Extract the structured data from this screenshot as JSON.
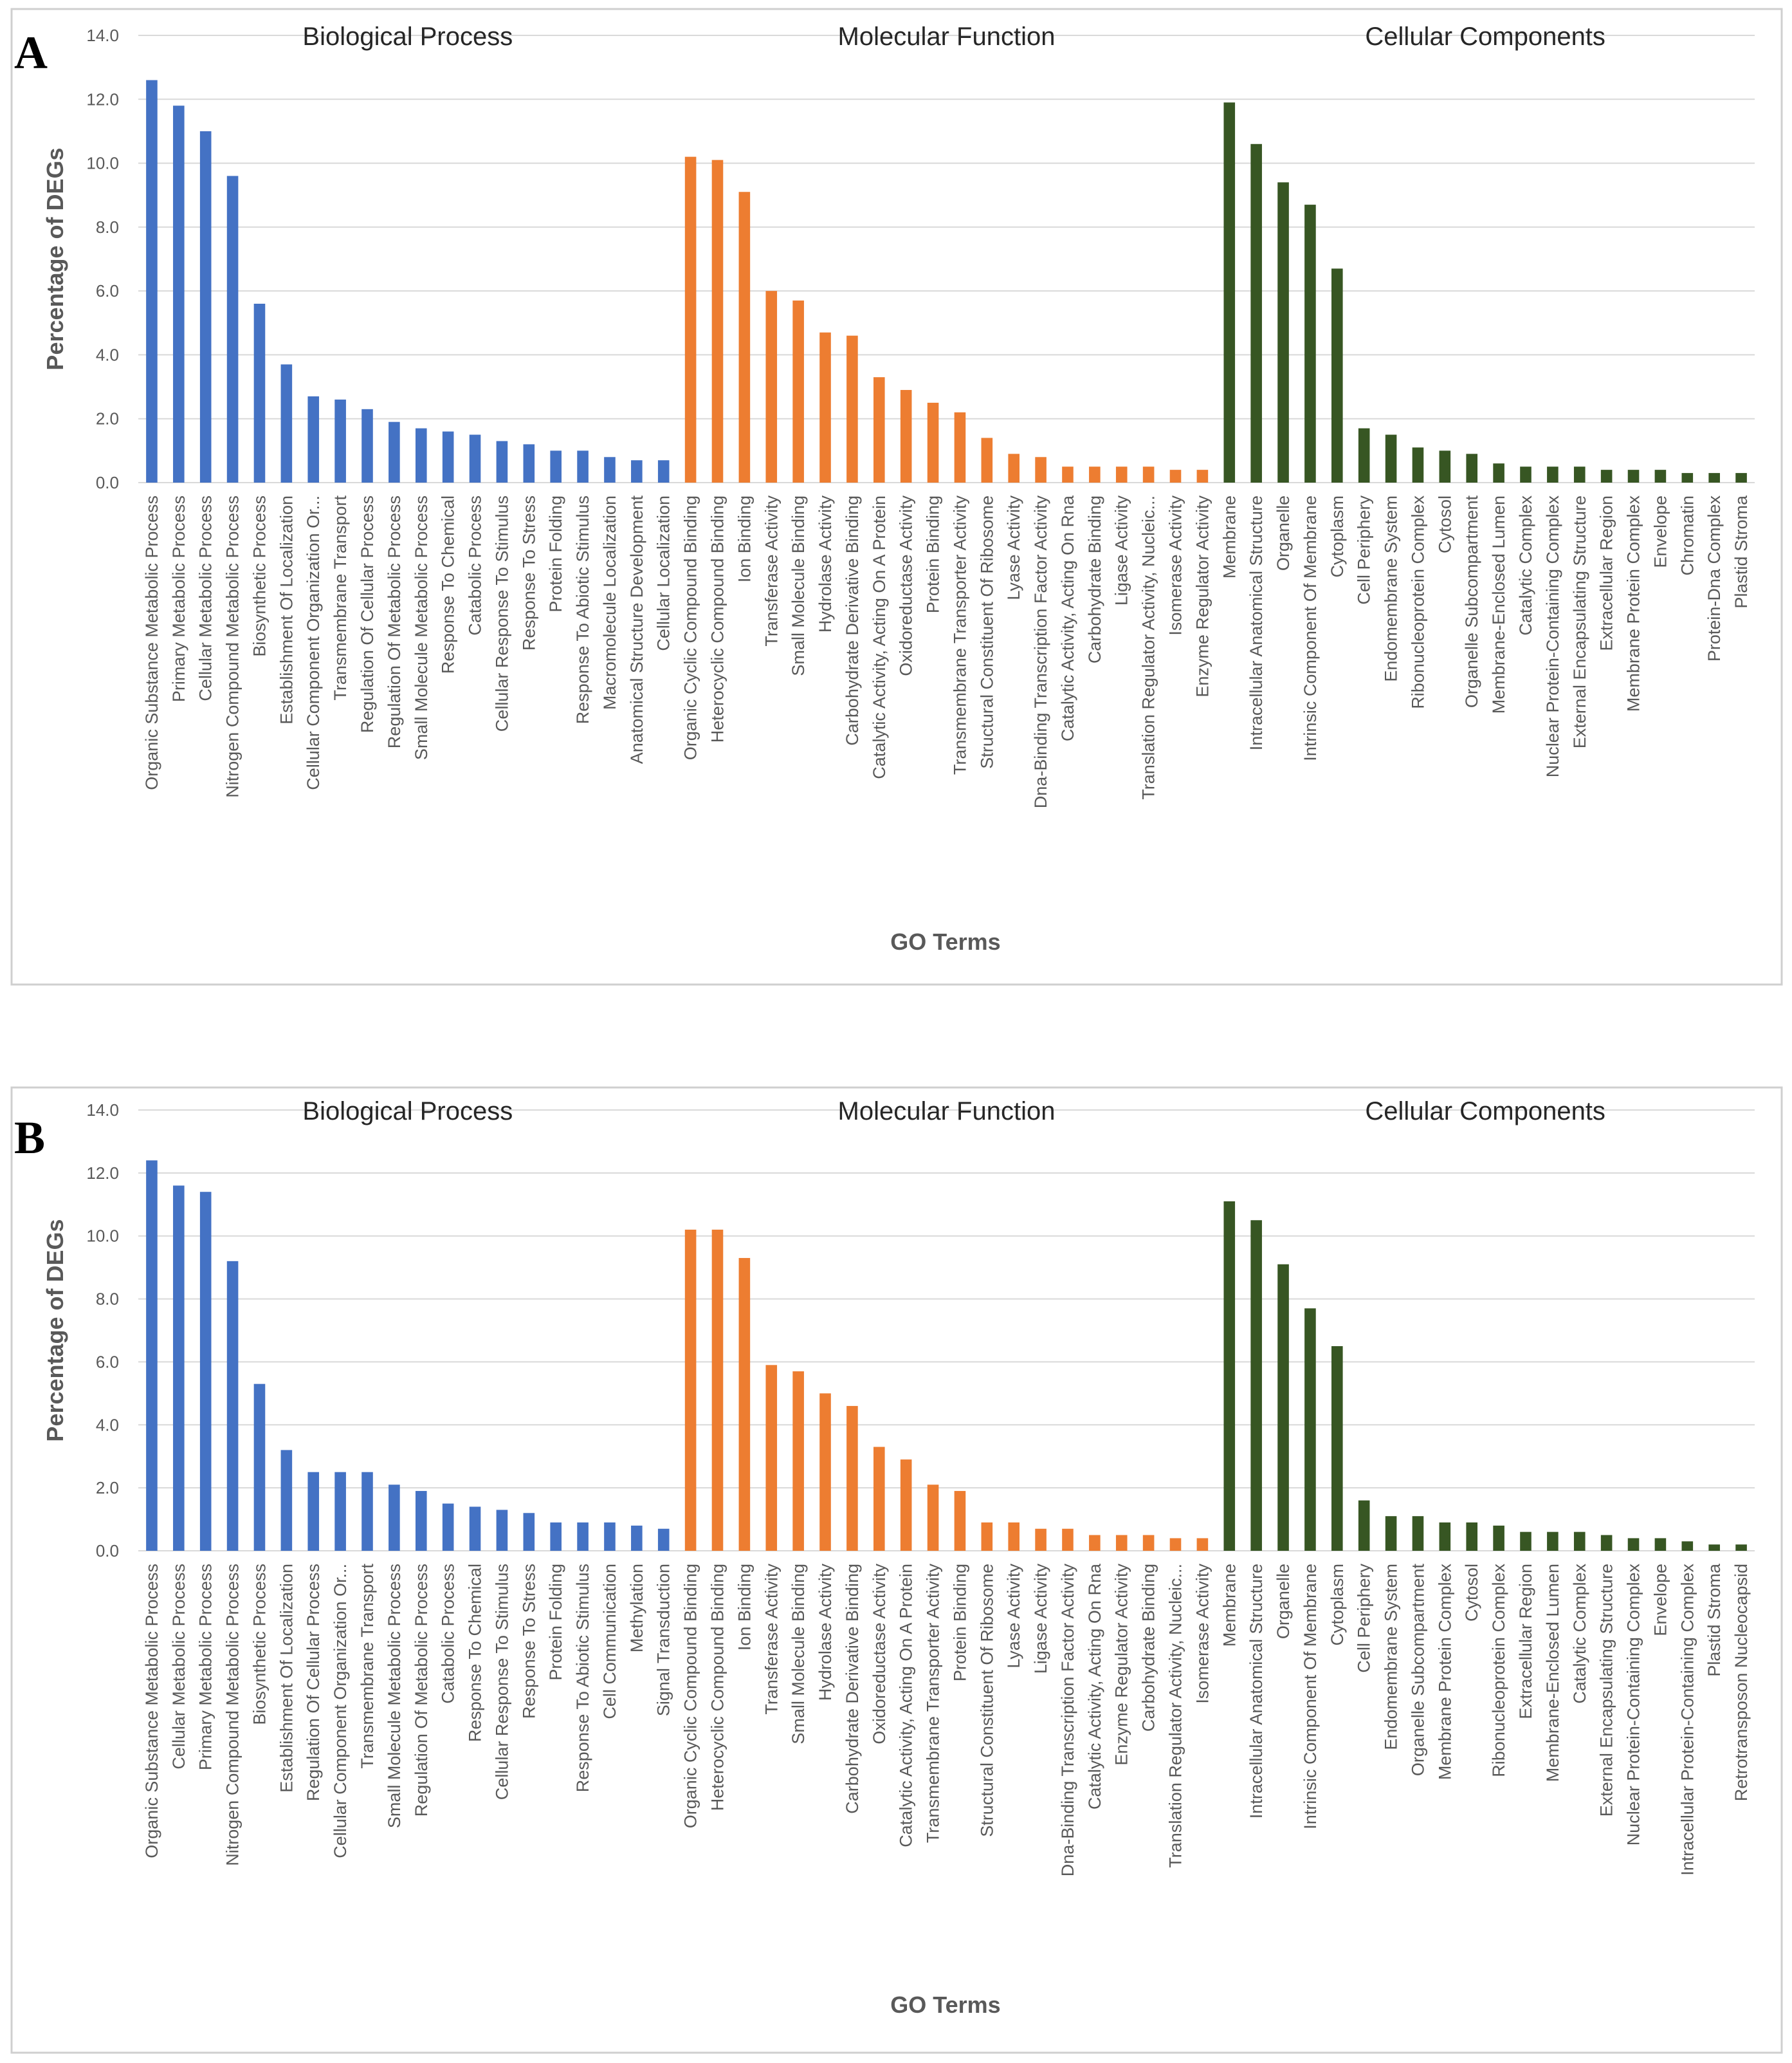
{
  "chart_data": [
    {
      "type": "bar",
      "panel_label": "A",
      "ylabel": "Percentage of DEGs",
      "xlabel": "GO Terms",
      "ylim": [
        0,
        14
      ],
      "yticks": [
        "0.0",
        "2.0",
        "4.0",
        "6.0",
        "8.0",
        "10.0",
        "12.0",
        "14.0"
      ],
      "grid": true,
      "series": [
        {
          "name": "Biological Process",
          "color": "#4472C4",
          "categories": [
            "Organic Substance Metabolic Process",
            "Primary Metabolic Process",
            "Cellular Metabolic Process",
            "Nitrogen Compound Metabolic Process",
            "Biosynthetic Process",
            "Establishment Of Localization",
            "Cellular Component Organization Or...",
            "Transmembrane Transport",
            "Regulation Of Cellular Process",
            "Regulation Of Metabolic Process",
            "Small Molecule Metabolic Process",
            "Response To Chemical",
            "Catabolic Process",
            "Cellular Response To Stimulus",
            "Response To Stress",
            "Protein Folding",
            "Response To Abiotic Stimulus",
            "Macromolecule Localization",
            "Anatomical Structure Development",
            "Cellular Localization"
          ],
          "values": [
            12.6,
            11.8,
            11.0,
            9.6,
            5.6,
            3.7,
            2.7,
            2.6,
            2.3,
            1.9,
            1.7,
            1.6,
            1.5,
            1.3,
            1.2,
            1.0,
            1.0,
            0.8,
            0.7,
            0.7
          ]
        },
        {
          "name": "Molecular Function",
          "color": "#ED7D31",
          "categories": [
            "Organic Cyclic Compound Binding",
            "Heterocyclic Compound Binding",
            "Ion Binding",
            "Transferase Activity",
            "Small Molecule Binding",
            "Hydrolase Activity",
            "Carbohydrate Derivative Binding",
            "Catalytic Activity, Acting On A Protein",
            "Oxidoreductase Activity",
            "Protein Binding",
            "Transmembrane Transporter Activity",
            "Structural Constituent Of Ribosome",
            "Lyase Activity",
            "Dna-Binding Transcription Factor Activity",
            "Catalytic Activity, Acting On Rna",
            "Carbohydrate Binding",
            "Ligase Activity",
            "Translation Regulator Activity, Nucleic...",
            "Isomerase Activity",
            "Enzyme Regulator Activity"
          ],
          "values": [
            10.2,
            10.1,
            9.1,
            6.0,
            5.7,
            4.7,
            4.6,
            3.3,
            2.9,
            2.5,
            2.2,
            1.4,
            0.9,
            0.8,
            0.5,
            0.5,
            0.5,
            0.5,
            0.4,
            0.4
          ]
        },
        {
          "name": "Cellular Components",
          "color": "#375623",
          "categories": [
            "Membrane",
            "Intracellular Anatomical Structure",
            "Organelle",
            "Intrinsic Component Of Membrane",
            "Cytoplasm",
            "Cell Periphery",
            "Endomembrane System",
            "Ribonucleoprotein Complex",
            "Cytosol",
            "Organelle Subcompartment",
            "Membrane-Enclosed Lumen",
            "Catalytic Complex",
            "Nuclear Protein-Containing Complex",
            "External Encapsulating Structure",
            "Extracellular Region",
            "Membrane Protein Complex",
            "Envelope",
            "Chromatin",
            "Protein-Dna Complex",
            "Plastid Stroma"
          ],
          "values": [
            11.9,
            10.6,
            9.4,
            8.7,
            6.7,
            1.7,
            1.5,
            1.1,
            1.0,
            0.9,
            0.6,
            0.5,
            0.5,
            0.5,
            0.4,
            0.4,
            0.4,
            0.3,
            0.3,
            0.3
          ]
        }
      ]
    },
    {
      "type": "bar",
      "panel_label": "B",
      "ylabel": "Percentage of DEGs",
      "xlabel": "GO Terms",
      "ylim": [
        0,
        14
      ],
      "yticks": [
        "0.0",
        "2.0",
        "4.0",
        "6.0",
        "8.0",
        "10.0",
        "12.0",
        "14.0"
      ],
      "grid": true,
      "series": [
        {
          "name": "Biological Process",
          "color": "#4472C4",
          "categories": [
            "Organic Substance Metabolic Process",
            "Cellular Metabolic Process",
            "Primary Metabolic Process",
            "Nitrogen Compound Metabolic Process",
            "Biosynthetic Process",
            "Establishment Of Localization",
            "Regulation Of Cellular Process",
            "Cellular Component Organization Or...",
            "Transmembrane Transport",
            "Small Molecule Metabolic Process",
            "Regulation Of Metabolic Process",
            "Catabolic Process",
            "Response To Chemical",
            "Cellular Response To Stimulus",
            "Response To Stress",
            "Protein Folding",
            "Response To Abiotic Stimulus",
            "Cell Communication",
            "Methylation",
            "Signal Transduction"
          ],
          "values": [
            12.4,
            11.6,
            11.4,
            9.2,
            5.3,
            3.2,
            2.5,
            2.5,
            2.5,
            2.1,
            1.9,
            1.5,
            1.4,
            1.3,
            1.2,
            0.9,
            0.9,
            0.9,
            0.8,
            0.7
          ]
        },
        {
          "name": "Molecular Function",
          "color": "#ED7D31",
          "categories": [
            "Organic Cyclic Compound Binding",
            "Heterocyclic Compound Binding",
            "Ion Binding",
            "Transferase Activity",
            "Small Molecule Binding",
            "Hydrolase Activity",
            "Carbohydrate Derivative Binding",
            "Oxidoreductase Activity",
            "Catalytic Activity, Acting On A Protein",
            "Transmembrane Transporter Activity",
            "Protein Binding",
            "Structural Constituent Of Ribosome",
            "Lyase Activity",
            "Ligase Activity",
            "Dna-Binding Transcription Factor Activity",
            "Catalytic Activity, Acting On Rna",
            "Enzyme Regulator Activity",
            "Carbohydrate Binding",
            "Translation Regulator Activity, Nucleic...",
            "Isomerase Activity"
          ],
          "values": [
            10.2,
            10.2,
            9.3,
            5.9,
            5.7,
            5.0,
            4.6,
            3.3,
            2.9,
            2.1,
            1.9,
            0.9,
            0.9,
            0.7,
            0.7,
            0.5,
            0.5,
            0.5,
            0.4,
            0.4
          ]
        },
        {
          "name": "Cellular Components",
          "color": "#375623",
          "categories": [
            "Membrane",
            "Intracellular Anatomical Structure",
            "Organelle",
            "Intrinsic Component Of Membrane",
            "Cytoplasm",
            "Cell Periphery",
            "Endomembrane System",
            "Organelle Subcompartment",
            "Membrane Protein Complex",
            "Cytosol",
            "Ribonucleoprotein Complex",
            "Extracellular Region",
            "Membrane-Enclosed Lumen",
            "Catalytic Complex",
            "External Encapsulating Structure",
            "Nuclear Protein-Containing Complex",
            "Envelope",
            "Intracellular Protein-Containing Complex",
            "Plastid Stroma",
            "Retrotransposon Nucleocapsid"
          ],
          "values": [
            11.1,
            10.5,
            9.1,
            7.7,
            6.5,
            1.6,
            1.1,
            1.1,
            0.9,
            0.9,
            0.8,
            0.6,
            0.6,
            0.6,
            0.5,
            0.4,
            0.4,
            0.3,
            0.2,
            0.2
          ]
        }
      ]
    }
  ]
}
